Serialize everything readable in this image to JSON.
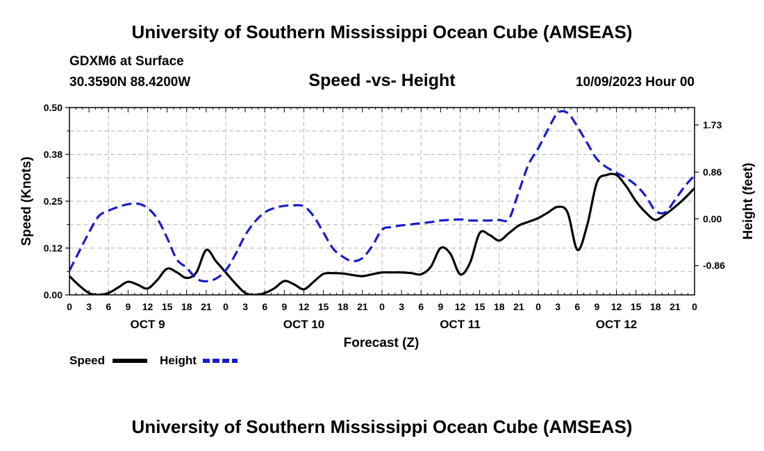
{
  "header": {
    "title": "University of Southern Mississippi Ocean Cube (AMSEAS)",
    "station": "GDXM6 at Surface",
    "coords": "30.3590N  88.4200W",
    "date": "10/09/2023 Hour 00",
    "footer_title": "University of Southern Mississippi Ocean Cube (AMSEAS)"
  },
  "chart_data": {
    "type": "line",
    "title": "Speed -vs- Height",
    "xlabel": "Forecast (Z)",
    "ylabel_left": "Speed (Knots)",
    "ylabel_right": "Height (feet)",
    "x_range_hours": [
      0,
      96
    ],
    "ylim_left": [
      0.0,
      0.5
    ],
    "ylim_right": [
      -1.4,
      2.05
    ],
    "y_ticks_left": [
      "0.00",
      "0.12",
      "0.25",
      "0.38",
      "0.50"
    ],
    "y_tick_values_left": [
      0.0,
      0.125,
      0.25,
      0.375,
      0.5
    ],
    "y_ticks_right": [
      "-0.86",
      "0.00",
      "0.86",
      "1.73"
    ],
    "y_tick_values_right": [
      -0.86,
      0.0,
      0.86,
      1.73
    ],
    "x_tick_labels": [
      "0",
      "3",
      "6",
      "9",
      "12",
      "15",
      "18",
      "21",
      "0",
      "3",
      "6",
      "9",
      "12",
      "15",
      "18",
      "21",
      "0",
      "3",
      "6",
      "9",
      "12",
      "15",
      "18",
      "21",
      "0",
      "3",
      "6",
      "9",
      "12",
      "15",
      "18",
      "21",
      "0"
    ],
    "date_labels": [
      {
        "label": "OCT 9",
        "hour": 12
      },
      {
        "label": "OCT 10",
        "hour": 36
      },
      {
        "label": "OCT 11",
        "hour": 60
      },
      {
        "label": "OCT 12",
        "hour": 84
      }
    ],
    "grid": true,
    "series": [
      {
        "name": "Speed",
        "axis": "left",
        "color": "#000000",
        "style": "solid",
        "x": [
          0,
          1.5,
          3,
          4.5,
          6,
          7.5,
          9,
          10.5,
          12,
          13.5,
          15,
          16.5,
          18,
          19.5,
          21,
          22.5,
          24,
          25.5,
          27,
          28.5,
          30,
          31.5,
          33,
          34.5,
          36,
          37.5,
          39,
          40.5,
          42,
          43.5,
          45,
          46.5,
          48,
          49.5,
          51,
          52.5,
          54,
          55.5,
          57,
          58.5,
          60,
          61.5,
          63,
          64.5,
          66,
          67.5,
          69,
          70.5,
          72,
          73.5,
          75,
          76.5,
          78,
          79.5,
          81,
          82.5,
          84,
          85.5,
          87,
          88.5,
          90,
          91.5,
          93,
          94.5,
          96
        ],
        "values": [
          0.05,
          0.025,
          0.005,
          0.0,
          0.005,
          0.02,
          0.035,
          0.027,
          0.017,
          0.04,
          0.07,
          0.06,
          0.045,
          0.06,
          0.12,
          0.09,
          0.06,
          0.03,
          0.005,
          0.0,
          0.005,
          0.018,
          0.037,
          0.028,
          0.015,
          0.035,
          0.056,
          0.058,
          0.057,
          0.053,
          0.05,
          0.055,
          0.06,
          0.06,
          0.06,
          0.058,
          0.055,
          0.075,
          0.125,
          0.11,
          0.055,
          0.085,
          0.165,
          0.16,
          0.145,
          0.165,
          0.185,
          0.195,
          0.205,
          0.22,
          0.235,
          0.22,
          0.12,
          0.185,
          0.3,
          0.32,
          0.32,
          0.29,
          0.25,
          0.22,
          0.2,
          0.215,
          0.235,
          0.258,
          0.285
        ]
      },
      {
        "name": "Height",
        "axis": "right",
        "color": "#1a1acc",
        "style": "dashed",
        "x": [
          0,
          1.5,
          3,
          4.5,
          6,
          7.5,
          9,
          10.5,
          12,
          13.5,
          15,
          16.5,
          18,
          19.5,
          21,
          22.5,
          24,
          25.5,
          27,
          28.5,
          30,
          31.5,
          33,
          34.5,
          36,
          37.5,
          39,
          40.5,
          42,
          43.5,
          45,
          46.5,
          48,
          49.5,
          51,
          52.5,
          54,
          55.5,
          57,
          58.5,
          60,
          61.5,
          63,
          64.5,
          66,
          67.5,
          69,
          70.5,
          72,
          73.5,
          75,
          76.5,
          78,
          79.5,
          81,
          82.5,
          84,
          85.5,
          87,
          88.5,
          90,
          91.5,
          93,
          94.5,
          96
        ],
        "values": [
          -0.95,
          -0.6,
          -0.25,
          0.05,
          0.15,
          0.22,
          0.27,
          0.28,
          0.2,
          0.0,
          -0.35,
          -0.75,
          -0.9,
          -1.1,
          -1.15,
          -1.1,
          -0.95,
          -0.65,
          -0.3,
          -0.05,
          0.12,
          0.2,
          0.24,
          0.25,
          0.23,
          0.05,
          -0.25,
          -0.55,
          -0.7,
          -0.78,
          -0.72,
          -0.5,
          -0.2,
          -0.15,
          -0.12,
          -0.1,
          -0.08,
          -0.06,
          -0.03,
          -0.02,
          -0.01,
          -0.03,
          -0.03,
          -0.03,
          -0.02,
          0.0,
          0.5,
          1.0,
          1.3,
          1.65,
          1.95,
          1.95,
          1.7,
          1.4,
          1.1,
          0.95,
          0.85,
          0.75,
          0.62,
          0.42,
          0.15,
          0.12,
          0.35,
          0.6,
          0.8
        ]
      }
    ],
    "legend": [
      {
        "label": "Speed",
        "color": "#000000",
        "style": "solid"
      },
      {
        "label": "Height",
        "color": "#1a1acc",
        "style": "dashed"
      }
    ]
  }
}
